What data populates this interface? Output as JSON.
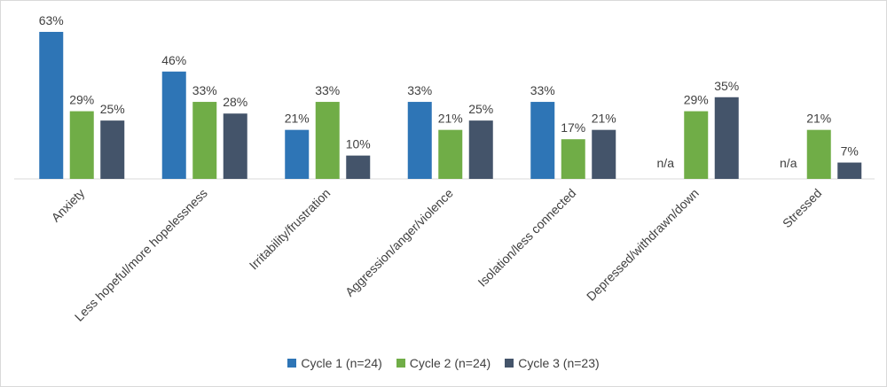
{
  "chart_data": {
    "type": "bar",
    "categories": [
      "Anxiety",
      "Less hopeful/more hopelessness",
      "Irritability/frustration",
      "Aggression/anger/violence",
      "Isolation/less connected",
      "Depressed/withdrawn/down",
      "Stressed"
    ],
    "series": [
      {
        "name": "Cycle 1 (n=24)",
        "color": "#2e75b6",
        "values": [
          63,
          46,
          21,
          33,
          33,
          null,
          null
        ],
        "labels": [
          "63%",
          "46%",
          "21%",
          "33%",
          "33%",
          "n/a",
          "n/a"
        ]
      },
      {
        "name": "Cycle 2 (n=24)",
        "color": "#70ad47",
        "values": [
          29,
          33,
          33,
          21,
          17,
          29,
          21
        ],
        "labels": [
          "29%",
          "33%",
          "33%",
          "21%",
          "17%",
          "29%",
          "21%"
        ]
      },
      {
        "name": "Cycle 3 (n=23)",
        "color": "#44546a",
        "values": [
          25,
          28,
          10,
          25,
          21,
          35,
          7
        ],
        "labels": [
          "25%",
          "28%",
          "10%",
          "25%",
          "21%",
          "35%",
          "7%"
        ]
      }
    ],
    "value_unit": "%",
    "ylim": [
      0,
      63
    ],
    "grid": false,
    "legend_position": "bottom",
    "title": "",
    "xlabel": "",
    "ylabel": ""
  }
}
